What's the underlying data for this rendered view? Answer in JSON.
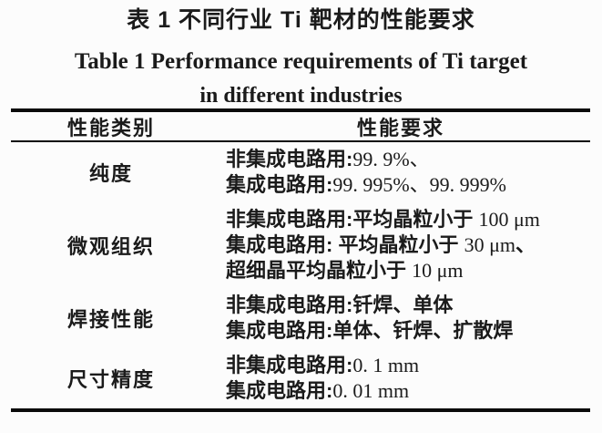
{
  "caption": {
    "zh": "表 1  不同行业 Ti 靶材的性能要求",
    "en_line1": "Table 1   Performance requirements of Ti target",
    "en_line2": "in different industries"
  },
  "colors": {
    "text": "#1b1b1b",
    "rule": "#0b0b0b",
    "background": "#fcfcfc"
  },
  "table": {
    "headers": [
      "性能类别",
      "性能要求"
    ],
    "rows": [
      {
        "category": "纯度",
        "lines": [
          [
            {
              "style": "label",
              "text": "非集成电路用:"
            },
            {
              "style": "value",
              "text": "99. 9%、"
            }
          ],
          [
            {
              "style": "label",
              "text": "集成电路用:"
            },
            {
              "style": "value",
              "text": "99. 995%、99. 999%"
            }
          ]
        ]
      },
      {
        "category": "微观组织",
        "lines": [
          [
            {
              "style": "label",
              "text": "非集成电路用:平均晶粒小于 "
            },
            {
              "style": "value",
              "text": "100 μm"
            }
          ],
          [
            {
              "style": "label",
              "text": "集成电路用: 平均晶粒小于 "
            },
            {
              "style": "value",
              "text": "30 μm"
            },
            {
              "style": "label",
              "text": "、"
            }
          ],
          [
            {
              "style": "label",
              "text": "超细晶平均晶粒小于 "
            },
            {
              "style": "value",
              "text": "10 μm"
            }
          ]
        ]
      },
      {
        "category": "焊接性能",
        "lines": [
          [
            {
              "style": "label",
              "text": "非集成电路用:钎焊、单体"
            }
          ],
          [
            {
              "style": "label",
              "text": "集成电路用:单体、钎焊、扩散焊"
            }
          ]
        ]
      },
      {
        "category": "尺寸精度",
        "lines": [
          [
            {
              "style": "label",
              "text": "非集成电路用:"
            },
            {
              "style": "value",
              "text": "0. 1 mm"
            }
          ],
          [
            {
              "style": "label",
              "text": "集成电路用:"
            },
            {
              "style": "value",
              "text": "0. 01 mm"
            }
          ]
        ]
      }
    ]
  }
}
